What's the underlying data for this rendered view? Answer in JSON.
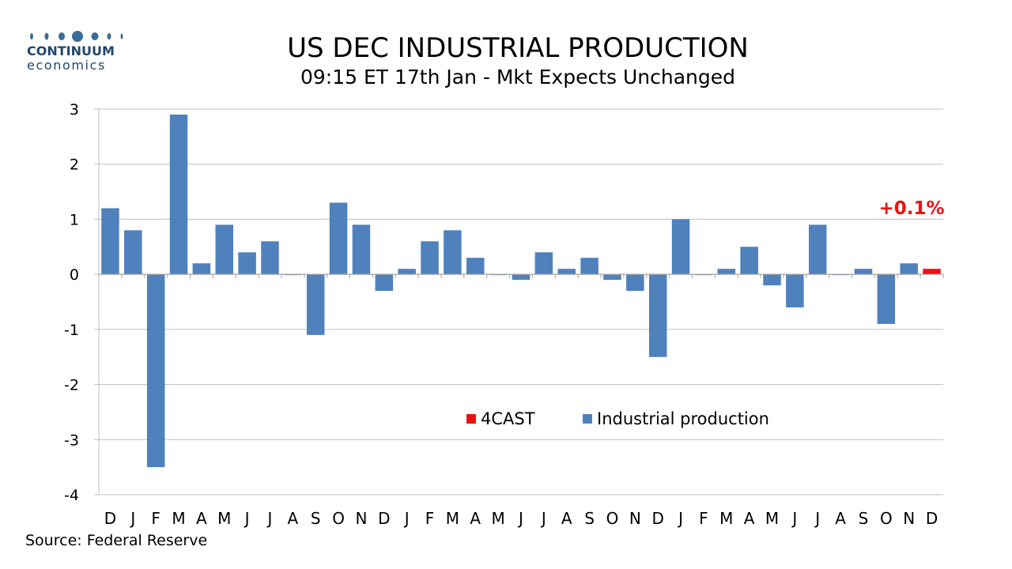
{
  "logo": {
    "name": "CONTINUUM",
    "sub": "economics"
  },
  "source": "Source: Federal Reserve",
  "colors": {
    "actual": "#4f81bd",
    "forecast": "#ee1111",
    "grid": "#bfbfbf",
    "logo": "#22476b"
  },
  "chart_data": {
    "type": "bar",
    "title": "US DEC INDUSTRIAL PRODUCTION",
    "subtitle": "09:15 ET 17th Jan - Mkt Expects Unchanged",
    "categories": [
      "D",
      "J",
      "F",
      "M",
      "A",
      "M",
      "J",
      "J",
      "A",
      "S",
      "O",
      "N",
      "D",
      "J",
      "F",
      "M",
      "A",
      "M",
      "J",
      "J",
      "A",
      "S",
      "O",
      "N",
      "D",
      "J",
      "F",
      "M",
      "A",
      "M",
      "J",
      "J",
      "A",
      "S",
      "O",
      "N",
      "D"
    ],
    "series": [
      {
        "name": "Industrial production",
        "values": [
          1.2,
          0.8,
          -3.5,
          2.9,
          0.2,
          0.9,
          0.4,
          0.6,
          0.0,
          -1.1,
          1.3,
          0.9,
          -0.3,
          0.1,
          0.6,
          0.8,
          0.3,
          0.0,
          -0.1,
          0.4,
          0.1,
          0.3,
          -0.1,
          -0.3,
          -1.5,
          1.0,
          0.0,
          0.1,
          0.5,
          -0.2,
          -0.6,
          0.9,
          0.0,
          0.1,
          -0.9,
          0.2,
          null
        ]
      },
      {
        "name": "4CAST",
        "values": [
          null,
          null,
          null,
          null,
          null,
          null,
          null,
          null,
          null,
          null,
          null,
          null,
          null,
          null,
          null,
          null,
          null,
          null,
          null,
          null,
          null,
          null,
          null,
          null,
          null,
          null,
          null,
          null,
          null,
          null,
          null,
          null,
          null,
          null,
          null,
          null,
          0.1
        ]
      }
    ],
    "annotation": "+0.1%",
    "ylim": [
      -4,
      3
    ],
    "yticks": [
      3,
      2,
      1,
      0,
      -1,
      -2,
      -3,
      -4
    ],
    "legend": [
      "4CAST",
      "Industrial production"
    ],
    "legend_position": "bottom-center inside",
    "grid": true
  }
}
